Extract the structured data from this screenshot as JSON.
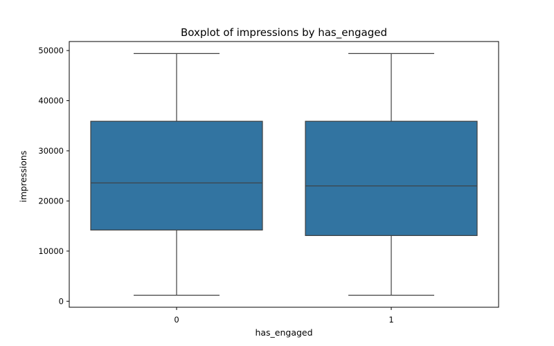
{
  "chart_data": {
    "type": "boxplot",
    "title": "Boxplot of impressions by has_engaged",
    "xlabel": "has_engaged",
    "ylabel": "impressions",
    "categories": [
      "0",
      "1"
    ],
    "boxes": [
      {
        "category": "0",
        "whisker_low": 1200,
        "q1": 14200,
        "median": 23600,
        "q3": 35900,
        "whisker_high": 49400
      },
      {
        "category": "1",
        "whisker_low": 1200,
        "q1": 13100,
        "median": 23000,
        "q3": 35900,
        "whisker_high": 49400
      }
    ],
    "yticks": [
      0,
      10000,
      20000,
      30000,
      40000,
      50000
    ],
    "ylim": [
      -1200,
      51800
    ],
    "box_color": "#3274a1",
    "line_color": "#3f3f3f",
    "grid": false,
    "legend": "none"
  }
}
